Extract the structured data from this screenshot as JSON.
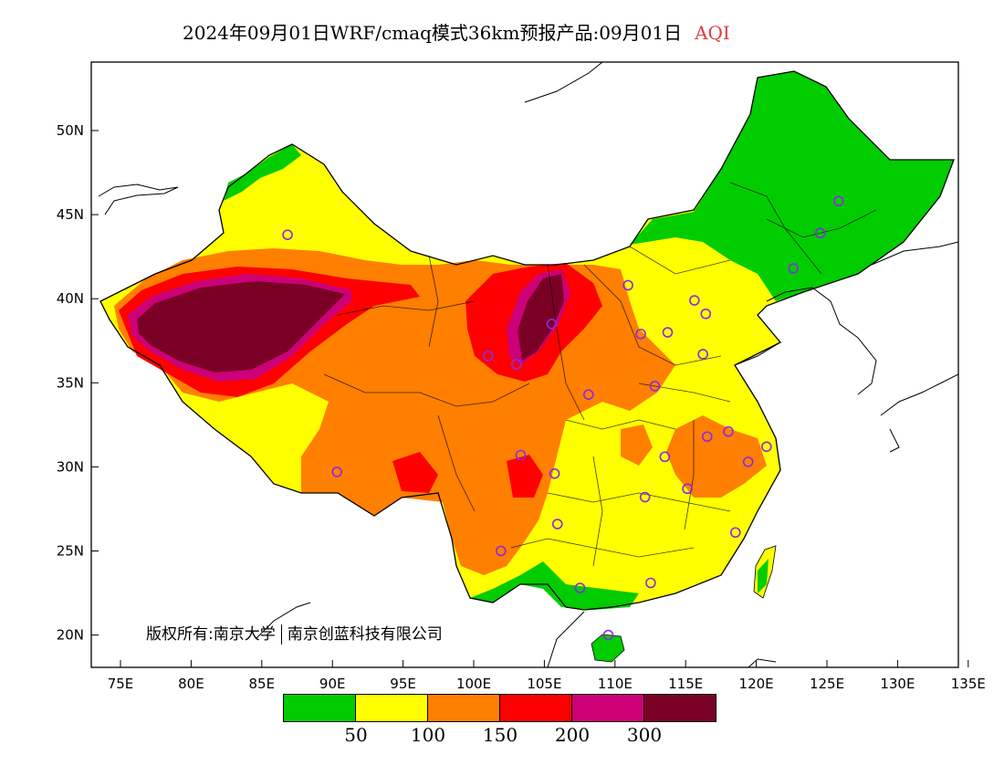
{
  "title": {
    "text": "2024年09月01日WRF/cmaq模式36km预报产品:09月01日",
    "tag": "AQI",
    "tag_color": "#e03a3a"
  },
  "copyright": {
    "part1": "版权所有:南京大学",
    "part2": "南京创蓝科技有限公司"
  },
  "axes": {
    "y_ticks": [
      "50N",
      "45N",
      "40N",
      "35N",
      "30N",
      "25N",
      "20N"
    ],
    "x_ticks": [
      "75E",
      "80E",
      "85E",
      "90E",
      "95E",
      "100E",
      "105E",
      "110E",
      "115E",
      "120E",
      "125E",
      "130E",
      "135E"
    ]
  },
  "legend": {
    "colors": [
      "#00cc00",
      "#ffff00",
      "#ff7f00",
      "#ff0000",
      "#cc0077",
      "#7a0026"
    ],
    "ticks": [
      "50",
      "100",
      "150",
      "200",
      "300"
    ]
  },
  "colors": {
    "land_outline": "#000000",
    "station_marker": "#8a2be2"
  },
  "stations": [
    {
      "lon": 87.6,
      "lat": 43.8
    },
    {
      "lon": 91.1,
      "lat": 29.7
    },
    {
      "lon": 101.8,
      "lat": 36.6
    },
    {
      "lon": 103.8,
      "lat": 36.1
    },
    {
      "lon": 106.3,
      "lat": 38.5
    },
    {
      "lon": 104.1,
      "lat": 30.7
    },
    {
      "lon": 106.5,
      "lat": 29.6
    },
    {
      "lon": 102.7,
      "lat": 25.0
    },
    {
      "lon": 106.7,
      "lat": 26.6
    },
    {
      "lon": 108.3,
      "lat": 22.8
    },
    {
      "lon": 110.3,
      "lat": 20.0
    },
    {
      "lon": 113.3,
      "lat": 23.1
    },
    {
      "lon": 112.9,
      "lat": 28.2
    },
    {
      "lon": 114.3,
      "lat": 30.6
    },
    {
      "lon": 115.9,
      "lat": 28.7
    },
    {
      "lon": 119.3,
      "lat": 26.1
    },
    {
      "lon": 120.2,
      "lat": 30.3
    },
    {
      "lon": 121.5,
      "lat": 31.2
    },
    {
      "lon": 118.8,
      "lat": 32.1
    },
    {
      "lon": 117.3,
      "lat": 31.8
    },
    {
      "lon": 113.6,
      "lat": 34.8
    },
    {
      "lon": 108.9,
      "lat": 34.3
    },
    {
      "lon": 112.6,
      "lat": 37.9
    },
    {
      "lon": 114.5,
      "lat": 38.0
    },
    {
      "lon": 117.0,
      "lat": 36.7
    },
    {
      "lon": 116.4,
      "lat": 39.9
    },
    {
      "lon": 117.2,
      "lat": 39.1
    },
    {
      "lon": 111.7,
      "lat": 40.8
    },
    {
      "lon": 123.4,
      "lat": 41.8
    },
    {
      "lon": 125.3,
      "lat": 43.9
    },
    {
      "lon": 126.6,
      "lat": 45.8
    }
  ]
}
